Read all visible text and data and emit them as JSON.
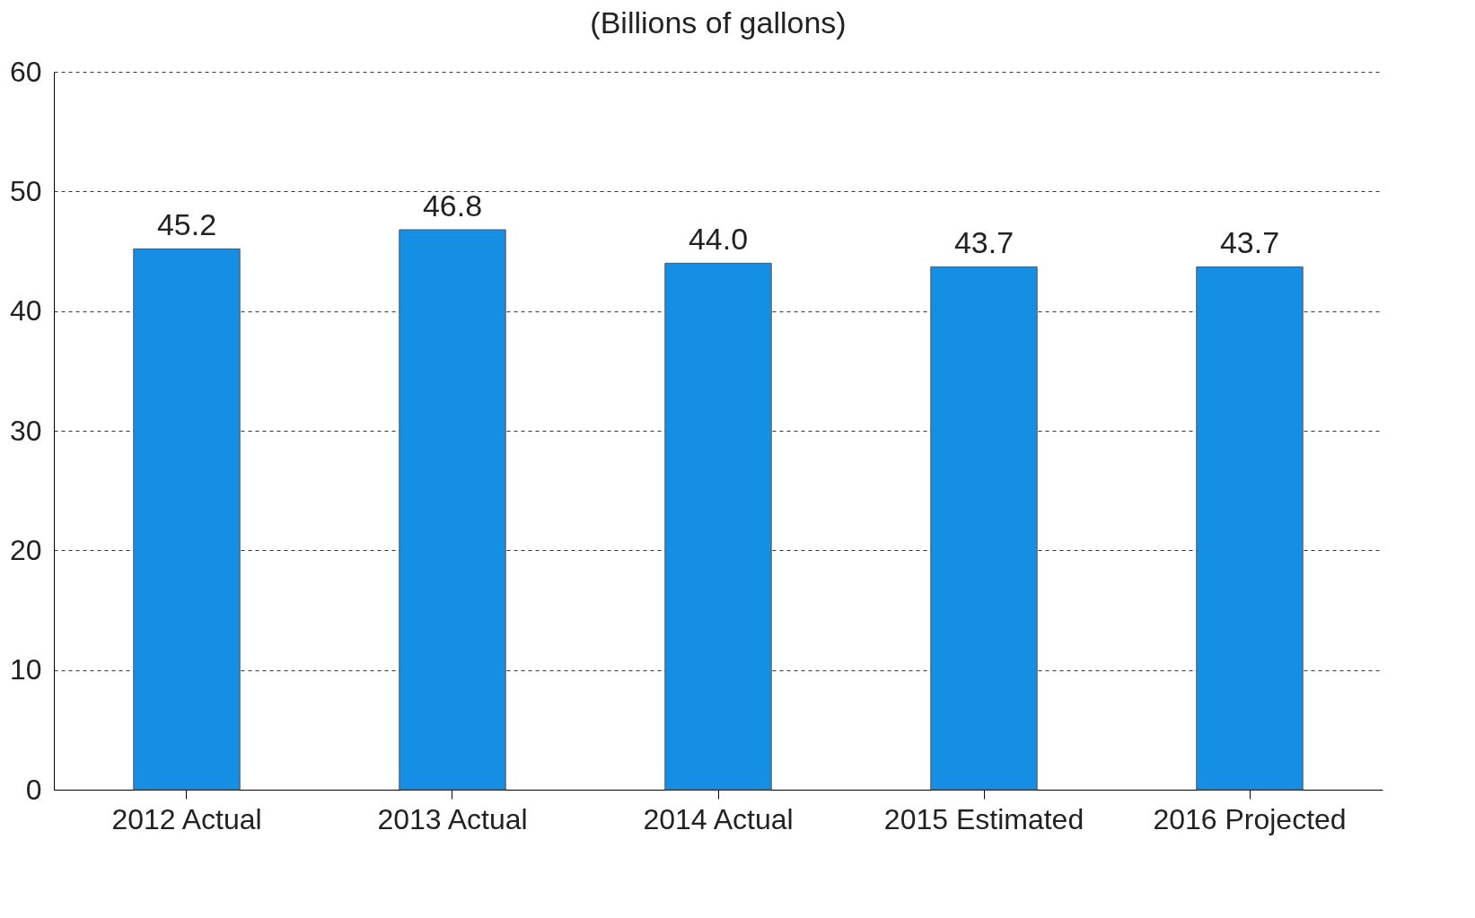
{
  "chart_data": {
    "type": "bar",
    "title": "(Billions of gallons)",
    "categories": [
      "2012 Actual",
      "2013 Actual",
      "2014 Actual",
      "2015 Estimated",
      "2016 Projected"
    ],
    "values": [
      45.2,
      46.8,
      44.0,
      43.7,
      43.7
    ],
    "color": "#148fe3",
    "ylim": [
      0,
      60
    ],
    "yticks": [
      0,
      10,
      20,
      30,
      40,
      50,
      60
    ],
    "value_labels": [
      "45.2",
      "46.8",
      "44.0",
      "43.7",
      "43.7"
    ],
    "grid": "y"
  }
}
